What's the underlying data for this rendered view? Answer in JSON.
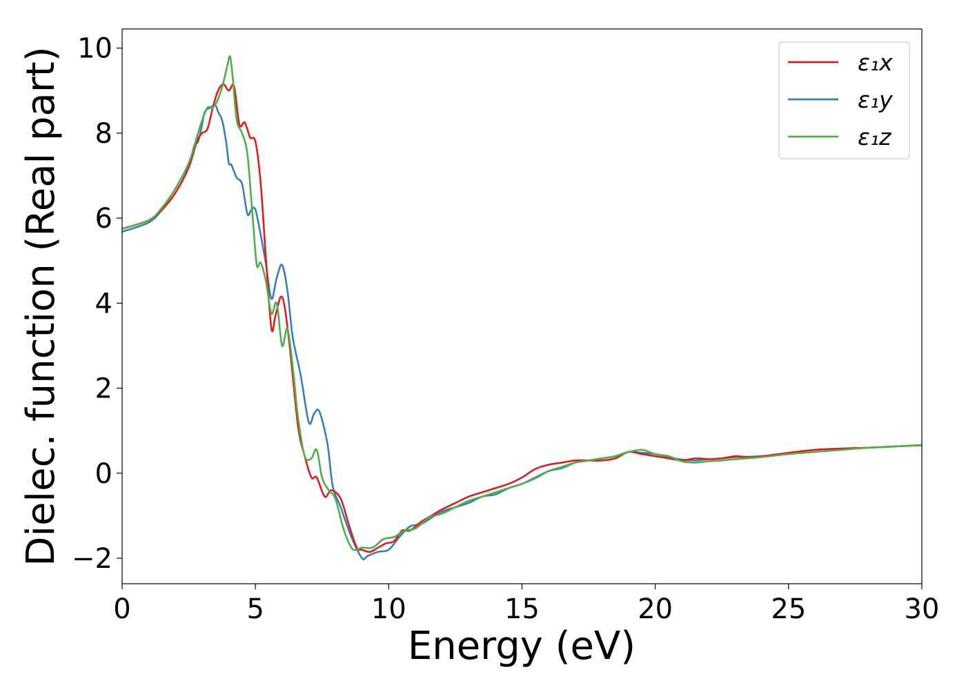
{
  "chart_data": {
    "type": "line",
    "title": "",
    "xlabel": "Energy (eV)",
    "ylabel": "Dielec. function (Real part)",
    "xlim": [
      0,
      30
    ],
    "ylim": [
      -2.6,
      10.45
    ],
    "xticks": [
      0,
      5,
      10,
      15,
      20,
      25,
      30
    ],
    "xtick_labels": [
      "0",
      "5",
      "10",
      "15",
      "20",
      "25",
      "30"
    ],
    "yticks": [
      -2,
      0,
      2,
      4,
      6,
      8,
      10
    ],
    "ytick_labels": [
      "−2",
      "0",
      "2",
      "4",
      "6",
      "8",
      "10"
    ],
    "grid": false,
    "legend_position": "top-right",
    "series": [
      {
        "name": "ε₁x",
        "color": "#e41a1c",
        "x": [
          0,
          1,
          1.5,
          2,
          2.5,
          2.8,
          3.0,
          3.2,
          3.4,
          3.6,
          3.8,
          4.0,
          4.2,
          4.4,
          4.6,
          4.8,
          5.0,
          5.2,
          5.4,
          5.6,
          5.75,
          5.95,
          6.1,
          6.3,
          6.6,
          6.85,
          7.1,
          7.3,
          7.6,
          7.85,
          8.2,
          8.5,
          8.8,
          9.0,
          9.3,
          9.6,
          9.9,
          10.2,
          10.5,
          10.8,
          11.2,
          11.6,
          12,
          12.5,
          13,
          13.5,
          14,
          14.5,
          15,
          15.5,
          16,
          16.5,
          17,
          17.5,
          18,
          18.5,
          19,
          19.5,
          20,
          20.5,
          21,
          21.5,
          22,
          22.5,
          23,
          23.5,
          24,
          25,
          26,
          27,
          28,
          29,
          30
        ],
        "values": [
          5.75,
          5.95,
          6.2,
          6.6,
          7.2,
          7.8,
          8.0,
          8.1,
          8.6,
          9.0,
          9.15,
          9.0,
          9.1,
          8.2,
          8.25,
          7.9,
          7.8,
          6.8,
          5.0,
          3.4,
          3.7,
          4.15,
          3.9,
          2.9,
          1.1,
          0.4,
          -0.1,
          -0.1,
          -0.55,
          -0.4,
          -0.6,
          -1.2,
          -1.75,
          -1.8,
          -1.85,
          -1.75,
          -1.65,
          -1.6,
          -1.35,
          -1.35,
          -1.15,
          -1.0,
          -0.85,
          -0.7,
          -0.55,
          -0.45,
          -0.35,
          -0.25,
          -0.1,
          0.1,
          0.2,
          0.25,
          0.3,
          0.3,
          0.3,
          0.35,
          0.5,
          0.45,
          0.4,
          0.35,
          0.3,
          0.35,
          0.33,
          0.35,
          0.4,
          0.38,
          0.4,
          0.48,
          0.55,
          0.58,
          0.6,
          0.63,
          0.66
        ]
      },
      {
        "name": "ε₁y",
        "color": "#377eb8",
        "x": [
          0,
          1,
          1.5,
          2,
          2.5,
          2.7,
          2.85,
          3.0,
          3.1,
          3.3,
          3.5,
          3.6,
          3.75,
          3.9,
          4.0,
          4.1,
          4.3,
          4.5,
          4.7,
          4.85,
          5.0,
          5.2,
          5.4,
          5.6,
          5.8,
          6.0,
          6.2,
          6.4,
          6.7,
          7.0,
          7.2,
          7.4,
          7.7,
          7.9,
          8.2,
          8.6,
          9.0,
          9.2,
          9.6,
          10.0,
          10.4,
          10.8,
          11.2,
          11.6,
          12,
          12.5,
          13,
          13.5,
          14,
          14.5,
          15,
          15.5,
          16,
          16.5,
          17,
          17.5,
          18,
          18.5,
          19,
          19.5,
          20,
          20.5,
          21,
          21.5,
          22,
          22.5,
          23,
          24,
          25,
          26,
          27,
          28,
          29,
          30
        ],
        "values": [
          5.68,
          5.9,
          6.2,
          6.6,
          7.2,
          7.7,
          7.8,
          8.2,
          8.5,
          8.6,
          8.65,
          8.5,
          8.3,
          7.8,
          7.3,
          7.25,
          6.95,
          6.8,
          6.1,
          6.2,
          6.2,
          5.6,
          4.9,
          4.1,
          4.6,
          4.9,
          4.3,
          3.2,
          2.3,
          1.2,
          1.4,
          1.45,
          0.7,
          -0.3,
          -0.8,
          -1.5,
          -2.0,
          -1.95,
          -1.85,
          -1.8,
          -1.5,
          -1.25,
          -1.2,
          -1.05,
          -0.9,
          -0.8,
          -0.7,
          -0.55,
          -0.5,
          -0.35,
          -0.25,
          -0.1,
          0.05,
          0.12,
          0.25,
          0.3,
          0.35,
          0.4,
          0.5,
          0.48,
          0.45,
          0.38,
          0.32,
          0.3,
          0.33,
          0.35,
          0.38,
          0.4,
          0.48,
          0.55,
          0.58,
          0.6,
          0.63,
          0.66
        ]
      },
      {
        "name": "ε₁z",
        "color": "#4daf4a",
        "x": [
          0,
          1,
          1.5,
          2,
          2.5,
          2.8,
          3.0,
          3.2,
          3.4,
          3.6,
          3.8,
          3.95,
          4.05,
          4.15,
          4.3,
          4.5,
          4.7,
          4.9,
          5.05,
          5.2,
          5.4,
          5.6,
          5.8,
          6.0,
          6.2,
          6.4,
          6.6,
          6.85,
          7.1,
          7.3,
          7.5,
          7.75,
          8.0,
          8.3,
          8.6,
          8.8,
          9.0,
          9.4,
          9.8,
          10.2,
          10.6,
          11.0,
          11.5,
          12,
          12.5,
          13,
          13.5,
          14,
          14.5,
          15,
          15.5,
          16,
          16.5,
          17,
          17.5,
          18,
          18.5,
          19,
          19.5,
          20,
          20.5,
          21,
          21.5,
          22,
          22.5,
          23,
          24,
          25,
          26,
          27,
          28,
          29,
          30
        ],
        "values": [
          5.75,
          5.95,
          6.25,
          6.7,
          7.3,
          7.9,
          8.3,
          8.6,
          8.6,
          8.8,
          9.2,
          9.6,
          9.8,
          9.3,
          8.3,
          8.0,
          7.5,
          6.0,
          4.9,
          4.95,
          4.5,
          3.75,
          4.0,
          3.0,
          3.4,
          2.5,
          1.3,
          0.4,
          0.35,
          0.55,
          -0.1,
          -0.4,
          -0.6,
          -1.3,
          -1.75,
          -1.8,
          -1.75,
          -1.75,
          -1.55,
          -1.5,
          -1.35,
          -1.3,
          -1.05,
          -0.95,
          -0.8,
          -0.65,
          -0.55,
          -0.45,
          -0.35,
          -0.25,
          -0.12,
          0.05,
          0.15,
          0.25,
          0.3,
          0.35,
          0.4,
          0.5,
          0.55,
          0.45,
          0.4,
          0.28,
          0.25,
          0.28,
          0.3,
          0.33,
          0.38,
          0.45,
          0.5,
          0.55,
          0.6,
          0.63,
          0.66
        ]
      }
    ]
  }
}
